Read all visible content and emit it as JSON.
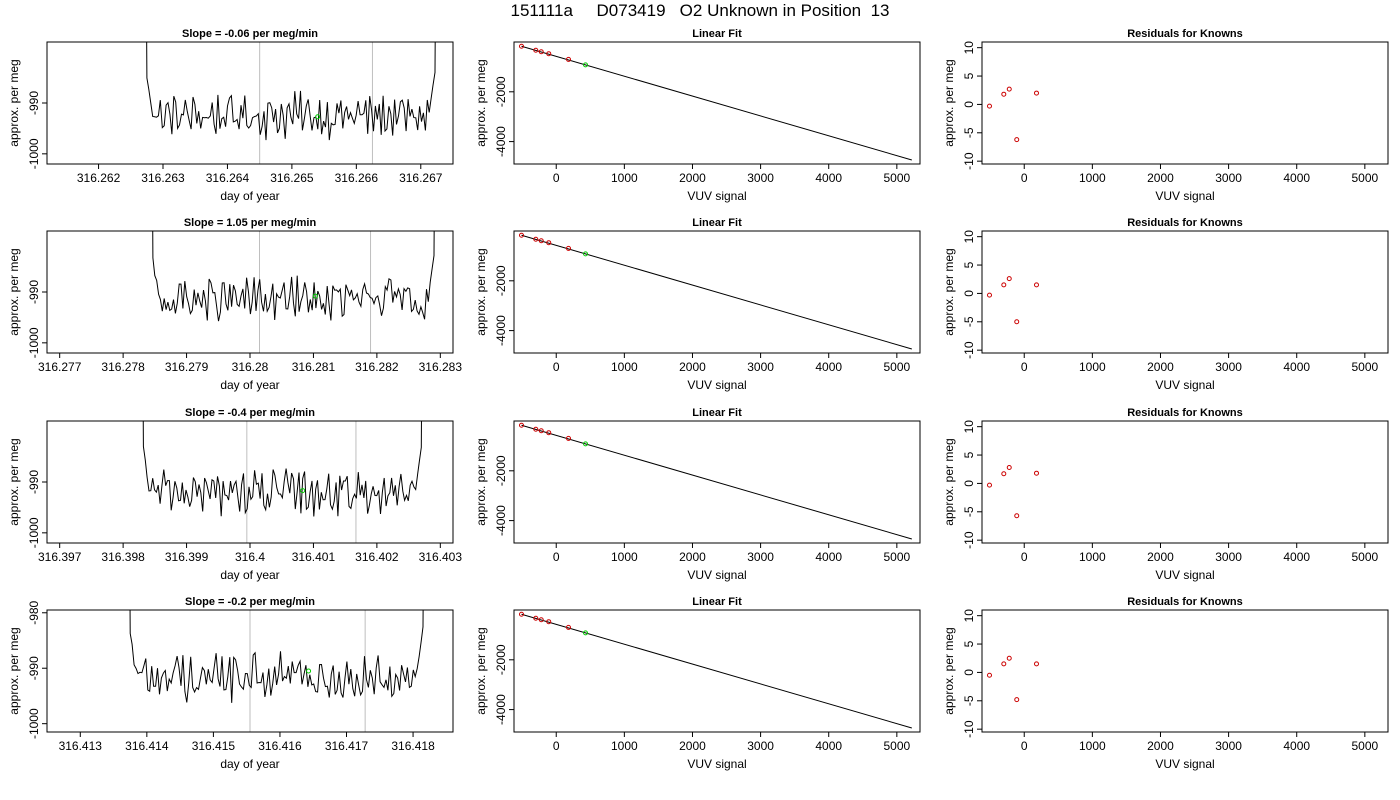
{
  "page_title": "151111a     D073419   O2 Unknown in Position  13",
  "colors": {
    "trace": "#000000",
    "marker_unknown": "#00cc00",
    "marker_known": "#cc0000",
    "vline": "#bebebe"
  },
  "chart_data": [
    {
      "type": "line",
      "panel": "time-series",
      "title": "Slope =  -0.06  per meg/min",
      "xlabel": "day of year",
      "ylabel": "approx. per meg",
      "xlim": [
        316.2612,
        316.2675
      ],
      "ylim": [
        -1002,
        -978
      ],
      "x_ticks": [
        316.262,
        316.263,
        316.264,
        316.265,
        316.266,
        316.267
      ],
      "y_ticks": [
        -990,
        -1000
      ],
      "trace_start": 316.26275,
      "trace_end": 316.26722,
      "trace_mean": -992.5,
      "vlines": [
        316.2645,
        316.26625
      ],
      "unknown_point": {
        "x": 316.2654,
        "y": -992.7
      }
    },
    {
      "type": "line",
      "panel": "linear-fit",
      "title": "Linear Fit",
      "xlabel": "VUV signal",
      "ylabel": "approx. per meg",
      "xlim": [
        -620,
        5340
      ],
      "ylim": [
        -4900,
        0
      ],
      "x_ticks": [
        0,
        1000,
        2000,
        3000,
        4000,
        5000
      ],
      "y_ticks": [
        -2000,
        -4000
      ],
      "fit_line": [
        [
          -510,
          -170
        ],
        [
          5220,
          -4740
        ]
      ],
      "knowns": [
        [
          -510,
          -170
        ],
        [
          -300,
          -330
        ],
        [
          -220,
          -390
        ],
        [
          -110,
          -470
        ],
        [
          180,
          -700
        ]
      ],
      "unknown": [
        [
          430,
          -920
        ]
      ]
    },
    {
      "type": "scatter",
      "panel": "residuals",
      "title": "Residuals for Knowns",
      "xlabel": "VUV signal",
      "ylabel": "approx. per meg",
      "xlim": [
        -620,
        5340
      ],
      "ylim": [
        -10.5,
        11
      ],
      "x_ticks": [
        0,
        1000,
        2000,
        3000,
        4000,
        5000
      ],
      "y_ticks": [
        10,
        5,
        0,
        -5,
        -10
      ],
      "points": [
        [
          -510,
          -0.3
        ],
        [
          -300,
          1.8
        ],
        [
          -220,
          2.7
        ],
        [
          -110,
          -6.2
        ],
        [
          180,
          2.0
        ]
      ]
    },
    {
      "type": "line",
      "panel": "time-series",
      "title": "Slope =  1.05  per meg/min",
      "xlabel": "day of year",
      "ylabel": "approx. per meg",
      "xlim": [
        316.2768,
        316.2832
      ],
      "ylim": [
        -1002,
        -978
      ],
      "x_ticks": [
        316.277,
        316.278,
        316.279,
        316.28,
        316.281,
        316.282,
        316.283
      ],
      "y_ticks": [
        -990,
        -1000
      ],
      "trace_start": 316.27847,
      "trace_end": 316.2829,
      "trace_mean": -991.5,
      "vlines": [
        316.28015,
        316.2819
      ],
      "unknown_point": {
        "x": 316.28103,
        "y": -990.8
      }
    },
    {
      "type": "line",
      "panel": "linear-fit",
      "title": "Linear Fit",
      "xlabel": "VUV signal",
      "ylabel": "approx. per meg",
      "xlim": [
        -620,
        5340
      ],
      "ylim": [
        -4900,
        0
      ],
      "x_ticks": [
        0,
        1000,
        2000,
        3000,
        4000,
        5000
      ],
      "y_ticks": [
        -2000,
        -4000
      ],
      "fit_line": [
        [
          -510,
          -170
        ],
        [
          5220,
          -4740
        ]
      ],
      "knowns": [
        [
          -510,
          -170
        ],
        [
          -300,
          -330
        ],
        [
          -220,
          -390
        ],
        [
          -110,
          -470
        ],
        [
          180,
          -700
        ]
      ],
      "unknown": [
        [
          430,
          -920
        ]
      ]
    },
    {
      "type": "scatter",
      "panel": "residuals",
      "title": "Residuals for Knowns",
      "xlabel": "VUV signal",
      "ylabel": "approx. per meg",
      "xlim": [
        -620,
        5340
      ],
      "ylim": [
        -10.5,
        11
      ],
      "x_ticks": [
        0,
        1000,
        2000,
        3000,
        4000,
        5000
      ],
      "y_ticks": [
        10,
        5,
        0,
        -5,
        -10
      ],
      "points": [
        [
          -510,
          -0.3
        ],
        [
          -300,
          1.5
        ],
        [
          -220,
          2.6
        ],
        [
          -110,
          -5.0
        ],
        [
          180,
          1.5
        ]
      ]
    },
    {
      "type": "line",
      "panel": "time-series",
      "title": "Slope =  -0.4  per meg/min",
      "xlabel": "day of year",
      "ylabel": "approx. per meg",
      "xlim": [
        316.3968,
        316.4032
      ],
      "ylim": [
        -1002,
        -978
      ],
      "x_ticks": [
        316.397,
        316.398,
        316.399,
        316.4,
        316.401,
        316.402,
        316.403
      ],
      "y_ticks": [
        -990,
        -1000
      ],
      "trace_start": 316.39832,
      "trace_end": 316.4027,
      "trace_mean": -992.0,
      "vlines": [
        316.39995,
        316.40167
      ],
      "unknown_point": {
        "x": 316.40083,
        "y": -991.7
      }
    },
    {
      "type": "line",
      "panel": "linear-fit",
      "title": "Linear Fit",
      "xlabel": "VUV signal",
      "ylabel": "approx. per meg",
      "xlim": [
        -620,
        5340
      ],
      "ylim": [
        -4900,
        0
      ],
      "x_ticks": [
        0,
        1000,
        2000,
        3000,
        4000,
        5000
      ],
      "y_ticks": [
        -2000,
        -4000
      ],
      "fit_line": [
        [
          -510,
          -170
        ],
        [
          5220,
          -4740
        ]
      ],
      "knowns": [
        [
          -510,
          -170
        ],
        [
          -300,
          -330
        ],
        [
          -220,
          -390
        ],
        [
          -110,
          -470
        ],
        [
          180,
          -700
        ]
      ],
      "unknown": [
        [
          430,
          -920
        ]
      ]
    },
    {
      "type": "scatter",
      "panel": "residuals",
      "title": "Residuals for Knowns",
      "xlabel": "VUV signal",
      "ylabel": "approx. per meg",
      "xlim": [
        -620,
        5340
      ],
      "ylim": [
        -10.5,
        11
      ],
      "x_ticks": [
        0,
        1000,
        2000,
        3000,
        4000,
        5000
      ],
      "y_ticks": [
        10,
        5,
        0,
        -5,
        -10
      ],
      "points": [
        [
          -510,
          -0.3
        ],
        [
          -300,
          1.7
        ],
        [
          -220,
          2.8
        ],
        [
          -110,
          -5.7
        ],
        [
          180,
          1.8
        ]
      ]
    },
    {
      "type": "line",
      "panel": "time-series",
      "title": "Slope =  -0.2  per meg/min",
      "xlabel": "day of year",
      "ylabel": "approx. per meg",
      "xlim": [
        316.4125,
        316.4186
      ],
      "ylim": [
        -1001.5,
        -979.5
      ],
      "x_ticks": [
        316.413,
        316.414,
        316.415,
        316.416,
        316.417,
        316.418
      ],
      "y_ticks": [
        -980,
        -990,
        -1000
      ],
      "trace_start": 316.41375,
      "trace_end": 316.41815,
      "trace_mean": -991.5,
      "vlines": [
        316.41555,
        316.41728
      ],
      "unknown_point": {
        "x": 316.41643,
        "y": -990.5
      }
    },
    {
      "type": "line",
      "panel": "linear-fit",
      "title": "Linear Fit",
      "xlabel": "VUV signal",
      "ylabel": "approx. per meg",
      "xlim": [
        -620,
        5340
      ],
      "ylim": [
        -4900,
        0
      ],
      "x_ticks": [
        0,
        1000,
        2000,
        3000,
        4000,
        5000
      ],
      "y_ticks": [
        -2000,
        -4000
      ],
      "fit_line": [
        [
          -510,
          -170
        ],
        [
          5220,
          -4740
        ]
      ],
      "knowns": [
        [
          -510,
          -170
        ],
        [
          -300,
          -330
        ],
        [
          -220,
          -390
        ],
        [
          -110,
          -470
        ],
        [
          180,
          -700
        ]
      ],
      "unknown": [
        [
          430,
          -920
        ]
      ]
    },
    {
      "type": "scatter",
      "panel": "residuals",
      "title": "Residuals for Knowns",
      "xlabel": "VUV signal",
      "ylabel": "approx. per meg",
      "xlim": [
        -620,
        5340
      ],
      "ylim": [
        -10.5,
        11
      ],
      "x_ticks": [
        0,
        1000,
        2000,
        3000,
        4000,
        5000
      ],
      "y_ticks": [
        10,
        5,
        0,
        -5,
        -10
      ],
      "points": [
        [
          -510,
          -0.5
        ],
        [
          -300,
          1.5
        ],
        [
          -220,
          2.5
        ],
        [
          -110,
          -4.8
        ],
        [
          180,
          1.5
        ]
      ]
    }
  ]
}
